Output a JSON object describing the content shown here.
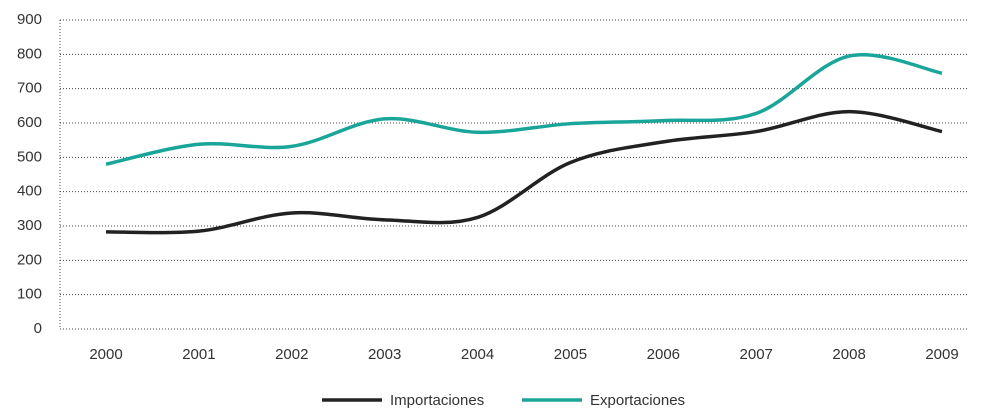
{
  "chart_data": {
    "type": "line",
    "categories": [
      "2000",
      "2001",
      "2002",
      "2003",
      "2004",
      "2005",
      "2006",
      "2007",
      "2008",
      "2009"
    ],
    "series": [
      {
        "name": "Importaciones",
        "color": "#222222",
        "values": [
          283,
          285,
          338,
          318,
          325,
          485,
          545,
          575,
          633,
          575
        ]
      },
      {
        "name": "Exportaciones",
        "color": "#1aa59a",
        "values": [
          480,
          538,
          532,
          612,
          573,
          598,
          607,
          628,
          795,
          745
        ]
      }
    ],
    "ylim": [
      0,
      900
    ],
    "yticks": [
      0,
      100,
      200,
      300,
      400,
      500,
      600,
      700,
      800,
      900
    ],
    "grid": true,
    "legend": "bottom"
  }
}
